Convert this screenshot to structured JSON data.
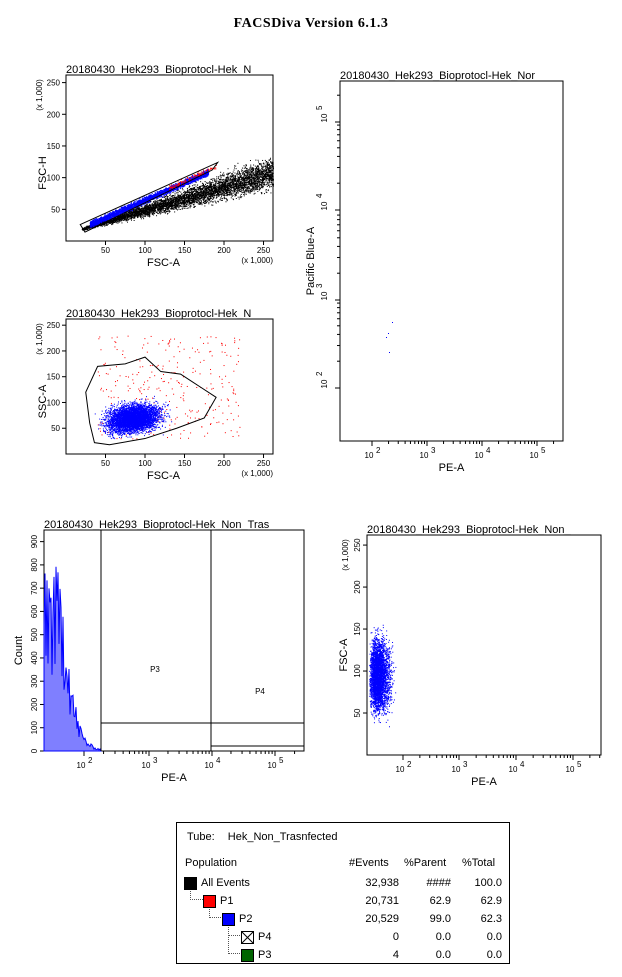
{
  "header": {
    "title": "FACSDiva Version 6.1.3"
  },
  "plots": [
    {
      "title": "20180430_Hek293_Bioprotocl-Hek_N",
      "xlabel": "FSC-A",
      "ylabel": "FSC-H",
      "xmult": "(x 1,000)",
      "ymult": "(x 1,000)",
      "xticks": [
        "50",
        "100",
        "150",
        "200",
        "250"
      ],
      "yticks": [
        "50",
        "100",
        "150",
        "200",
        "250"
      ]
    },
    {
      "title": "20180430_Hek293_Bioprotocl-Hek_Nor",
      "xlabel": "PE-A",
      "ylabel": "Pacific Blue-A",
      "xticks": [
        "10",
        "10",
        "10",
        "10"
      ],
      "xexp": [
        "2",
        "3",
        "4",
        "5"
      ],
      "yticks": [
        "10",
        "10",
        "10",
        "10"
      ],
      "yexp": [
        "2",
        "3",
        "4",
        "5"
      ]
    },
    {
      "title": "20180430_Hek293_Bioprotocl-Hek_N",
      "xlabel": "FSC-A",
      "ylabel": "SSC-A",
      "xmult": "(x 1,000)",
      "ymult": "(x 1,000)",
      "xticks": [
        "50",
        "100",
        "150",
        "200",
        "250"
      ],
      "yticks": [
        "50",
        "100",
        "150",
        "200",
        "250"
      ]
    },
    {
      "title": "20180430_Hek293_Bioprotocl-Hek_Non_Tras",
      "xlabel": "PE-A",
      "ylabel": "Count",
      "xticks": [
        "10",
        "10",
        "10",
        "10"
      ],
      "xexp": [
        "2",
        "3",
        "4",
        "5"
      ],
      "yticks": [
        "0",
        "100",
        "200",
        "300",
        "400",
        "500",
        "600",
        "700",
        "800",
        "900"
      ],
      "gates": [
        "P3",
        "P4"
      ]
    },
    {
      "title": "20180430_Hek293_Bioprotocl-Hek_Non_",
      "xlabel": "PE-A",
      "ylabel": "FSC-A",
      "ymult": "(x 1,000)",
      "xticks": [
        "10",
        "10",
        "10",
        "10"
      ],
      "xexp": [
        "2",
        "3",
        "4",
        "5"
      ],
      "yticks": [
        "50",
        "100",
        "150",
        "200",
        "250"
      ]
    }
  ],
  "chart_data": [
    {
      "type": "scatter",
      "title": "20180430_Hek293_Bioprotocl-Hek_N",
      "xlabel": "FSC-A",
      "ylabel": "FSC-H",
      "xlim": [
        0,
        262
      ],
      "ylim": [
        0,
        262
      ],
      "gate": "P1"
    },
    {
      "type": "scatter",
      "title": "20180430_Hek293_Bioprotocl-Hek_Nor",
      "xlabel": "PE-A",
      "ylabel": "Pacific Blue-A",
      "xscale": "log",
      "yscale": "log"
    },
    {
      "type": "scatter",
      "title": "20180430_Hek293_Bioprotocl-Hek_N",
      "xlabel": "FSC-A",
      "ylabel": "SSC-A",
      "xlim": [
        0,
        262
      ],
      "ylim": [
        0,
        262
      ],
      "gate": "P2"
    },
    {
      "type": "bar",
      "title": "20180430_Hek293_Bioprotocl-Hek_Non_Tras",
      "xlabel": "PE-A",
      "ylabel": "Count",
      "xscale": "log",
      "ylim": [
        0,
        950
      ],
      "gates": [
        "P3",
        "P4"
      ]
    },
    {
      "type": "scatter",
      "title": "20180430_Hek293_Bioprotocl-Hek_Non_",
      "xlabel": "PE-A",
      "ylabel": "FSC-A",
      "xscale": "log",
      "ylim": [
        0,
        262
      ]
    }
  ],
  "stats": {
    "tube_label": "Tube:",
    "tube_name": "Hek_Non_Trasnfected",
    "headers": {
      "population": "Population",
      "events": "#Events",
      "parent": "%Parent",
      "total": "%Total"
    },
    "rows": [
      {
        "name": "All Events",
        "events": "32,938",
        "parent": "####",
        "total": "100.0",
        "color": "#000000"
      },
      {
        "name": "P1",
        "events": "20,731",
        "parent": "62.9",
        "total": "62.9",
        "color": "#ff0000"
      },
      {
        "name": "P2",
        "events": "20,529",
        "parent": "99.0",
        "total": "62.3",
        "color": "#0000ff"
      },
      {
        "name": "P4",
        "events": "0",
        "parent": "0.0",
        "total": "0.0",
        "color": "#ffffff"
      },
      {
        "name": "P3",
        "events": "4",
        "parent": "0.0",
        "total": "0.0",
        "color": "#006400"
      }
    ]
  }
}
